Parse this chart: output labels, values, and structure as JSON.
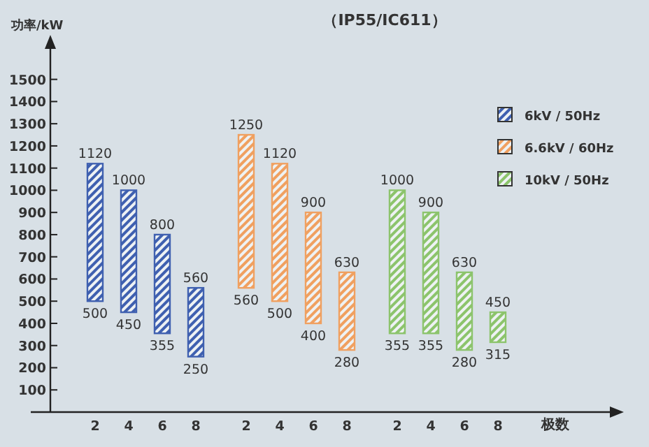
{
  "chart_data": {
    "type": "bar",
    "title": "（IP55/IC611）",
    "xlabel": "极数",
    "ylabel": "功率/kW",
    "categories": [
      "2",
      "4",
      "6",
      "8",
      "2",
      "4",
      "6",
      "8",
      "2",
      "4",
      "6",
      "8"
    ],
    "series": [
      {
        "name": "6kV / 50Hz",
        "color": "#3f60b0",
        "base": [
          500,
          450,
          355,
          250,
          null,
          null,
          null,
          null,
          null,
          null,
          null,
          null
        ],
        "values": [
          620,
          550,
          445,
          310,
          null,
          null,
          null,
          null,
          null,
          null,
          null,
          null
        ]
      },
      {
        "name": "6.6kV / 60Hz",
        "color": "#f0a060",
        "base": [
          null,
          null,
          null,
          null,
          560,
          500,
          400,
          280,
          null,
          null,
          null,
          null
        ],
        "values": [
          null,
          null,
          null,
          null,
          690,
          620,
          500,
          350,
          null,
          null,
          null,
          null
        ]
      },
      {
        "name": "10kV / 50Hz",
        "color": "#8cc46c",
        "base": [
          null,
          null,
          null,
          null,
          null,
          null,
          null,
          null,
          355,
          355,
          280,
          315
        ],
        "values": [
          null,
          null,
          null,
          null,
          null,
          null,
          null,
          null,
          645,
          545,
          350,
          135
        ]
      }
    ],
    "ylim": [
      0,
      1650
    ],
    "yticks": [
      100,
      200,
      300,
      400,
      500,
      600,
      700,
      800,
      900,
      1000,
      1100,
      1200,
      1300,
      1400,
      1500
    ],
    "legend": "top right",
    "annotations": [
      "1120",
      "500",
      "1000",
      "450",
      "800",
      "355",
      "560",
      "250",
      "1250",
      "560",
      "1120",
      "500",
      "900",
      "400",
      "630",
      "280",
      "1000",
      "355",
      "900",
      "355",
      "630",
      "280",
      "450",
      "315"
    ]
  }
}
